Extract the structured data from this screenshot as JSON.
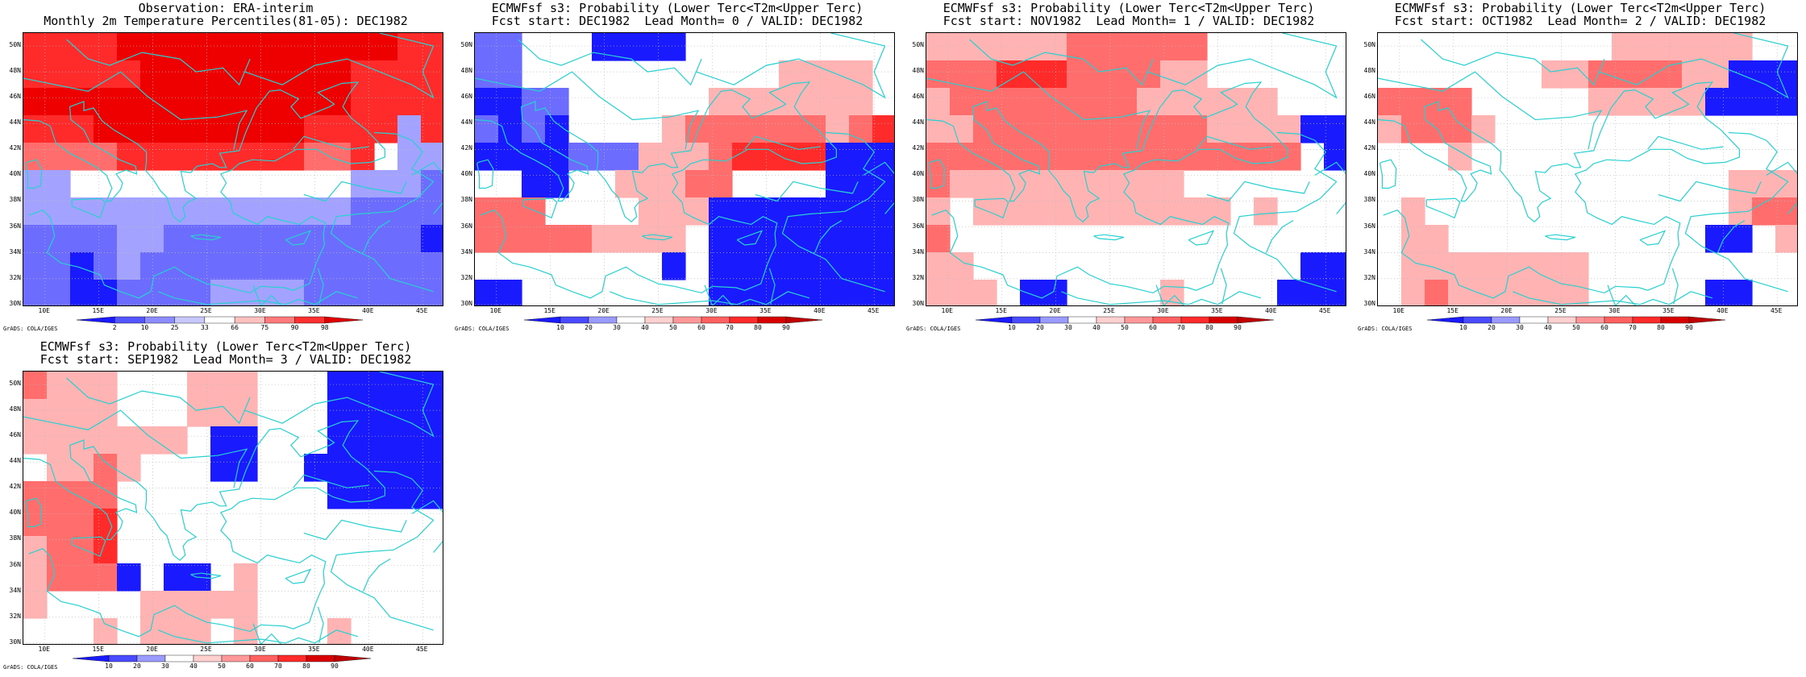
{
  "panels": [
    {
      "title1": "Observation: ERA-interim",
      "title2": "Monthly 2m Temperature Percentiles(81-05): DEC1982",
      "cbar_labels": [
        "2",
        "10",
        "25",
        "33",
        "66",
        "75",
        "90",
        "98"
      ],
      "grads": "GrADS: COLA/IGES",
      "grid": [
        [
          3,
          3,
          3,
          3,
          4,
          4,
          4,
          4,
          4,
          4,
          4,
          4,
          4,
          4,
          4,
          4,
          3,
          3
        ],
        [
          3,
          3,
          3,
          3,
          3,
          4,
          4,
          4,
          4,
          4,
          4,
          4,
          4,
          4,
          3,
          3,
          3,
          3
        ],
        [
          4,
          4,
          4,
          4,
          4,
          4,
          4,
          4,
          4,
          4,
          4,
          4,
          4,
          4,
          3,
          3,
          3,
          3
        ],
        [
          3,
          3,
          3,
          4,
          4,
          4,
          4,
          4,
          4,
          4,
          4,
          4,
          3,
          3,
          3,
          3,
          -1,
          3
        ],
        [
          2,
          2,
          2,
          2,
          3,
          3,
          3,
          3,
          3,
          3,
          3,
          3,
          2,
          2,
          3,
          0,
          -1,
          -1
        ],
        [
          -1,
          -1,
          0,
          0,
          0,
          0,
          0,
          0,
          0,
          0,
          0,
          0,
          0,
          0,
          -1,
          -1,
          -1,
          -2
        ],
        [
          -1,
          -1,
          -1,
          -1,
          -1,
          -1,
          -1,
          -1,
          -1,
          -1,
          -1,
          -1,
          -1,
          -1,
          -2,
          -2,
          -2,
          -2
        ],
        [
          -2,
          -2,
          -2,
          -2,
          -1,
          -1,
          -2,
          -2,
          -2,
          -2,
          -2,
          -2,
          -2,
          -2,
          -2,
          -2,
          -2,
          -3
        ],
        [
          -2,
          -2,
          -3,
          -2,
          -1,
          -2,
          -2,
          -2,
          -2,
          -2,
          -2,
          -2,
          -2,
          -2,
          -2,
          -2,
          -2,
          -2
        ],
        [
          -2,
          -2,
          -3,
          -3,
          -2,
          -2,
          -2,
          -2,
          -1,
          -1,
          -1,
          -1,
          -2,
          -2,
          -2,
          -2,
          -2,
          -2
        ]
      ]
    },
    {
      "title1": "ECMWFsf s3: Probability (Lower Terc<T2m<Upper Terc)",
      "title2": "Fcst start: DEC1982  Lead Month= 0 / VALID: DEC1982",
      "cbar_labels": [
        "10",
        "20",
        "30",
        "40",
        "50",
        "60",
        "70",
        "80",
        "90"
      ],
      "grads": "GrADS: COLA/IGES",
      "grid": [
        [
          -2,
          -2,
          0,
          0,
          0,
          -3,
          -3,
          -3,
          -3,
          0,
          0,
          0,
          0,
          0,
          0,
          0,
          0,
          0
        ],
        [
          -2,
          -2,
          0,
          0,
          0,
          0,
          0,
          0,
          0,
          0,
          0,
          0,
          0,
          1,
          1,
          1,
          1,
          0
        ],
        [
          -3,
          -3,
          -2,
          -2,
          0,
          0,
          0,
          0,
          0,
          0,
          1,
          1,
          1,
          1,
          1,
          1,
          1,
          0
        ],
        [
          -2,
          -3,
          -2,
          -3,
          0,
          0,
          0,
          0,
          1,
          2,
          2,
          2,
          2,
          2,
          2,
          1,
          2,
          3
        ],
        [
          -3,
          -3,
          -3,
          -3,
          -2,
          -2,
          -2,
          1,
          1,
          1,
          2,
          3,
          3,
          3,
          3,
          -3,
          -3,
          -3
        ],
        [
          0,
          0,
          -3,
          -3,
          0,
          0,
          1,
          1,
          1,
          2,
          2,
          0,
          0,
          0,
          0,
          -3,
          -3,
          -3
        ],
        [
          2,
          2,
          2,
          0,
          0,
          0,
          0,
          1,
          1,
          1,
          -3,
          -3,
          -3,
          -3,
          -3,
          -3,
          -3,
          -3
        ],
        [
          2,
          2,
          2,
          2,
          2,
          1,
          1,
          1,
          1,
          0,
          -3,
          -3,
          -3,
          -3,
          -3,
          -3,
          -3,
          -3
        ],
        [
          0,
          0,
          0,
          0,
          0,
          0,
          0,
          0,
          -3,
          0,
          -3,
          -3,
          -3,
          -3,
          -3,
          -3,
          -3,
          -3
        ],
        [
          -3,
          -3,
          0,
          0,
          0,
          0,
          0,
          0,
          0,
          0,
          -3,
          -3,
          -3,
          -3,
          -3,
          -3,
          -3,
          -3
        ]
      ]
    },
    {
      "title1": "ECMWFsf s3: Probability (Lower Terc<T2m<Upper Terc)",
      "title2": "Fcst start: NOV1982  Lead Month= 1 / VALID: DEC1982",
      "cbar_labels": [
        "10",
        "20",
        "30",
        "40",
        "50",
        "60",
        "70",
        "80",
        "90"
      ],
      "grads": "GrADS: COLA/IGES",
      "grid": [
        [
          1,
          1,
          1,
          1,
          1,
          1,
          2,
          2,
          2,
          2,
          2,
          2,
          0,
          0,
          0,
          0,
          0,
          0
        ],
        [
          2,
          2,
          2,
          3,
          3,
          3,
          2,
          2,
          2,
          2,
          1,
          1,
          0,
          0,
          0,
          0,
          0,
          0
        ],
        [
          1,
          2,
          2,
          2,
          2,
          2,
          2,
          2,
          2,
          1,
          1,
          1,
          1,
          1,
          1,
          0,
          0,
          0
        ],
        [
          1,
          1,
          2,
          2,
          2,
          2,
          2,
          2,
          2,
          2,
          2,
          2,
          1,
          1,
          1,
          1,
          -3,
          -3
        ],
        [
          2,
          2,
          2,
          2,
          2,
          2,
          2,
          2,
          2,
          2,
          2,
          2,
          2,
          2,
          2,
          2,
          0,
          -3
        ],
        [
          2,
          1,
          1,
          1,
          1,
          1,
          1,
          1,
          1,
          1,
          1,
          0,
          0,
          0,
          0,
          0,
          0,
          0
        ],
        [
          1,
          0,
          1,
          1,
          1,
          1,
          1,
          1,
          1,
          1,
          1,
          1,
          1,
          0,
          1,
          0,
          0,
          0
        ],
        [
          2,
          0,
          0,
          0,
          0,
          0,
          0,
          0,
          0,
          0,
          0,
          0,
          0,
          0,
          0,
          0,
          0,
          0
        ],
        [
          1,
          1,
          0,
          0,
          0,
          0,
          0,
          0,
          0,
          0,
          0,
          0,
          0,
          0,
          0,
          0,
          -3,
          -3
        ],
        [
          1,
          1,
          1,
          0,
          -3,
          -3,
          0,
          0,
          0,
          0,
          1,
          0,
          0,
          0,
          0,
          -3,
          -3,
          -3
        ]
      ]
    },
    {
      "title1": "ECMWFsf s3: Probability (Lower Terc<T2m<Upper Terc)",
      "title2": "Fcst start: OCT1982  Lead Month= 2 / VALID: DEC1982",
      "cbar_labels": [
        "10",
        "20",
        "30",
        "40",
        "50",
        "60",
        "70",
        "80",
        "90"
      ],
      "grads": "GrADS: COLA/IGES",
      "grid": [
        [
          0,
          0,
          0,
          0,
          0,
          0,
          0,
          0,
          0,
          0,
          1,
          1,
          1,
          1,
          1,
          1,
          0,
          0
        ],
        [
          0,
          0,
          0,
          0,
          0,
          0,
          0,
          1,
          1,
          2,
          2,
          2,
          2,
          1,
          1,
          -3,
          -3,
          -3
        ],
        [
          2,
          2,
          2,
          2,
          0,
          0,
          0,
          0,
          0,
          1,
          1,
          1,
          1,
          1,
          -3,
          -3,
          -3,
          -3
        ],
        [
          1,
          2,
          2,
          2,
          1,
          0,
          0,
          0,
          0,
          0,
          0,
          0,
          0,
          0,
          0,
          0,
          0,
          0
        ],
        [
          0,
          0,
          0,
          1,
          0,
          0,
          0,
          0,
          0,
          0,
          0,
          0,
          0,
          0,
          0,
          0,
          0,
          0
        ],
        [
          0,
          0,
          0,
          0,
          0,
          0,
          0,
          0,
          0,
          0,
          0,
          0,
          0,
          0,
          0,
          1,
          1,
          1
        ],
        [
          0,
          1,
          0,
          0,
          0,
          0,
          0,
          0,
          0,
          0,
          0,
          0,
          0,
          0,
          0,
          1,
          2,
          2
        ],
        [
          0,
          1,
          1,
          0,
          0,
          0,
          0,
          0,
          0,
          0,
          0,
          0,
          0,
          0,
          -3,
          -3,
          0,
          1
        ],
        [
          0,
          1,
          1,
          1,
          1,
          1,
          1,
          1,
          1,
          0,
          0,
          0,
          0,
          0,
          0,
          0,
          0,
          0
        ],
        [
          0,
          1,
          2,
          1,
          1,
          1,
          1,
          1,
          1,
          0,
          0,
          0,
          0,
          0,
          -3,
          -3,
          0,
          0
        ]
      ]
    },
    {
      "title1": "ECMWFsf s3: Probability (Lower Terc<T2m<Upper Terc)",
      "title2": "Fcst start: SEP1982  Lead Month= 3 / VALID: DEC1982",
      "cbar_labels": [
        "10",
        "20",
        "30",
        "40",
        "50",
        "60",
        "70",
        "80",
        "90"
      ],
      "grads": "GrADS: COLA/IGES",
      "grid": [
        [
          2,
          1,
          1,
          1,
          0,
          0,
          0,
          1,
          1,
          1,
          0,
          0,
          0,
          -3,
          -3,
          -3,
          -3,
          -3
        ],
        [
          1,
          1,
          1,
          1,
          0,
          0,
          0,
          1,
          1,
          1,
          0,
          0,
          0,
          -3,
          -3,
          -3,
          -3,
          -3
        ],
        [
          1,
          1,
          1,
          1,
          1,
          1,
          1,
          0,
          -3,
          -3,
          0,
          0,
          0,
          -3,
          -3,
          -3,
          -3,
          -3
        ],
        [
          0,
          1,
          1,
          2,
          1,
          0,
          0,
          0,
          -3,
          -3,
          0,
          0,
          -3,
          -3,
          -3,
          -3,
          -3,
          -3
        ],
        [
          2,
          2,
          2,
          2,
          0,
          0,
          0,
          0,
          0,
          0,
          0,
          0,
          0,
          -3,
          -3,
          -3,
          -3,
          -3
        ],
        [
          2,
          2,
          2,
          3,
          0,
          0,
          0,
          0,
          0,
          0,
          0,
          0,
          0,
          0,
          0,
          0,
          0,
          0
        ],
        [
          1,
          2,
          2,
          3,
          0,
          0,
          0,
          0,
          0,
          0,
          0,
          0,
          0,
          0,
          0,
          0,
          0,
          0
        ],
        [
          1,
          2,
          2,
          2,
          -3,
          0,
          -3,
          -3,
          0,
          1,
          0,
          0,
          0,
          0,
          0,
          0,
          0,
          0
        ],
        [
          1,
          0,
          0,
          0,
          0,
          1,
          1,
          1,
          1,
          1,
          0,
          0,
          0,
          0,
          0,
          0,
          0,
          0
        ],
        [
          0,
          0,
          0,
          1,
          0,
          1,
          1,
          1,
          0,
          1,
          0,
          0,
          0,
          1,
          0,
          0,
          0,
          0
        ]
      ]
    }
  ],
  "lat_labels": [
    "50N",
    "48N",
    "46N",
    "44N",
    "42N",
    "40N",
    "38N",
    "36N",
    "34N",
    "32N",
    "30N"
  ],
  "lon_labels": [
    "10E",
    "15E",
    "20E",
    "25E",
    "30E",
    "35E",
    "40E",
    "45E"
  ],
  "colors": {
    "-3": "#1a1aff",
    "-2": "#6c6cff",
    "-1": "#a3a3ff",
    "0": "#ffffff",
    "1": "#ffb3b3",
    "2": "#ff6d6d",
    "3": "#ff2a2a",
    "4": "#ee0000",
    "coast": "#28d0d0",
    "gridline": "#bbbbbb"
  },
  "cbar_colors_obs": [
    "#1a1aff",
    "#5555ff",
    "#8c8cff",
    "#c8c8ff",
    "#ffffff",
    "#ffc0c0",
    "#ff7a7a",
    "#ff3030",
    "#e00000"
  ],
  "cbar_colors_fc": [
    "#1a1aff",
    "#4a4aff",
    "#9a9aff",
    "#ffffff",
    "#ffd0d0",
    "#ff9999",
    "#ff6060",
    "#ff2a2a",
    "#d80000",
    "#c00000"
  ]
}
